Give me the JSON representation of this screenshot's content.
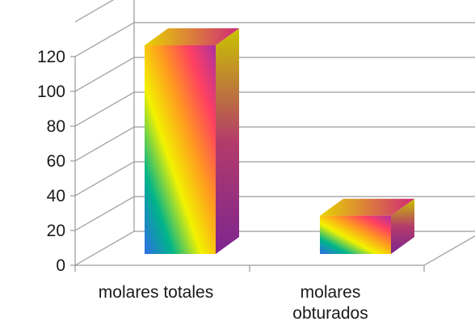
{
  "chart_data": {
    "type": "bar",
    "title": "",
    "xlabel": "",
    "ylabel": "",
    "categories": [
      [
        "molares totales"
      ],
      [
        "molares",
        "obturados"
      ]
    ],
    "values": [
      120,
      22
    ],
    "ylim": [
      0,
      120
    ],
    "yticks": [
      0,
      20,
      40,
      60,
      80,
      100,
      120
    ],
    "grid": true,
    "legend": "none",
    "style": "3d-bar",
    "colors": {
      "grid": "#9a9a9a",
      "bar_gradient": [
        "#2f6de8",
        "#00b48a",
        "#f2f200",
        "#ff9a1f",
        "#ff4060",
        "#b02fa0"
      ],
      "top_gradient": [
        "#e6d400",
        "#d02878"
      ],
      "side_gradient": [
        "#c9c400",
        "#b43b6a",
        "#7c2590"
      ]
    }
  }
}
